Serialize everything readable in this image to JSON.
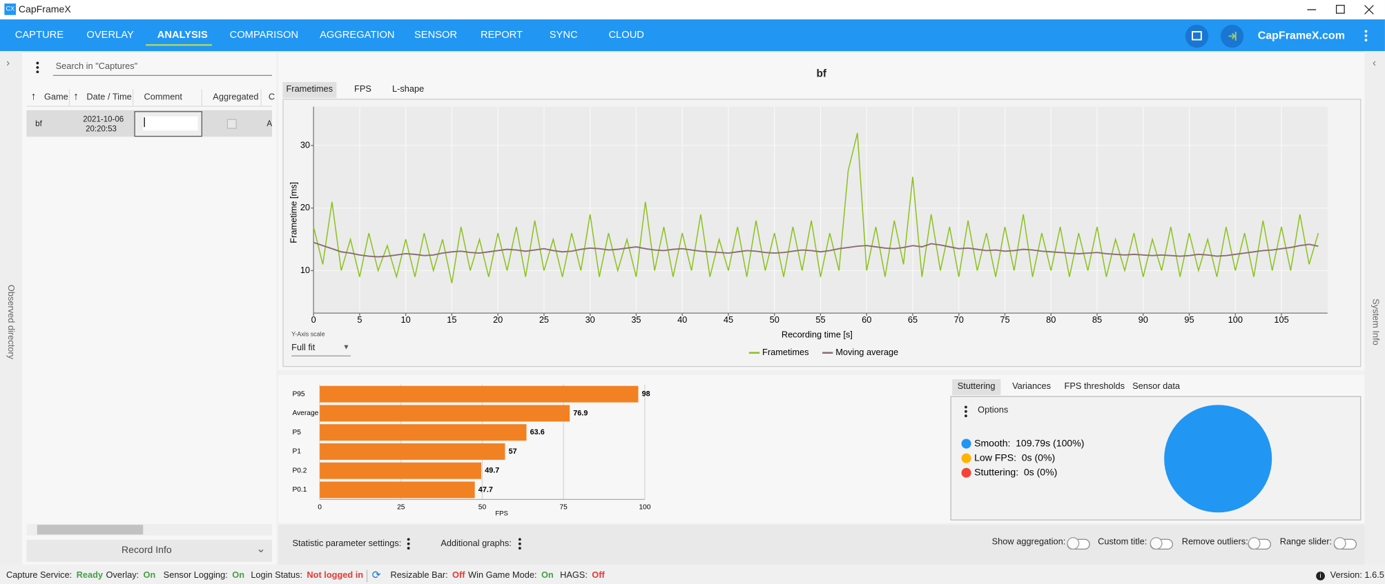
{
  "window": {
    "title": "CapFrameX"
  },
  "nav": {
    "tabs": [
      "CAPTURE",
      "OVERLAY",
      "ANALYSIS",
      "COMPARISON",
      "AGGREGATION",
      "SENSOR",
      "REPORT",
      "SYNC",
      "CLOUD"
    ],
    "site": "CapFrameX.com"
  },
  "sidebars": {
    "left": "Observed directory",
    "right": "System Info"
  },
  "captures": {
    "search_placeholder": "Search in \"Captures\"",
    "columns": [
      "Game",
      "Date / Time",
      "Comment",
      "Aggregated",
      "C"
    ],
    "rows": [
      [
        "bf",
        "2021-10-06",
        "20:20:53",
        "A"
      ]
    ],
    "record_info": "Record Info"
  },
  "analysis": {
    "title": "bf",
    "tabs": [
      "Frametimes",
      "FPS",
      "L-shape"
    ],
    "y_axis_scale_label": "Y-Axis scale",
    "y_axis_scale": "Full fit"
  },
  "frametime_chart": {
    "type": "line",
    "xlabel": "Recording time [s]",
    "ylabel": "Frametime [ms]",
    "x": [
      0,
      1,
      2,
      3,
      4,
      5,
      6,
      7,
      8,
      9,
      10,
      11,
      12,
      13,
      14,
      15,
      16,
      17,
      18,
      19,
      20,
      21,
      22,
      23,
      24,
      25,
      26,
      27,
      28,
      29,
      30,
      31,
      32,
      33,
      34,
      35,
      36,
      37,
      38,
      39,
      40,
      41,
      42,
      43,
      44,
      45,
      46,
      47,
      48,
      49,
      50,
      51,
      52,
      53,
      54,
      55,
      56,
      57,
      58,
      59,
      60,
      61,
      62,
      63,
      64,
      65,
      66,
      67,
      68,
      69,
      70,
      71,
      72,
      73,
      74,
      75,
      76,
      77,
      78,
      79,
      80,
      81,
      82,
      83,
      84,
      85,
      86,
      87,
      88,
      89,
      90,
      91,
      92,
      93,
      94,
      95,
      96,
      97,
      98,
      99,
      100,
      101,
      102,
      103,
      104,
      105,
      106,
      107,
      108,
      109
    ],
    "series": [
      {
        "name": "Frametimes",
        "color": "#8dc21f",
        "values": [
          17,
          11,
          21,
          10,
          15,
          9,
          16,
          10,
          14,
          9,
          15,
          9,
          16,
          10,
          15,
          8,
          17,
          10,
          15,
          9,
          16,
          10,
          17,
          9,
          18,
          10,
          15,
          9,
          16,
          10,
          19,
          9,
          16,
          10,
          15,
          9,
          21,
          10,
          17,
          9,
          16,
          10,
          19,
          9,
          15,
          10,
          17,
          9,
          18,
          10,
          16,
          9,
          17,
          10,
          18,
          9,
          16,
          10,
          26,
          32,
          10,
          17,
          9,
          18,
          11,
          25,
          9,
          19,
          10,
          17,
          9,
          18,
          10,
          16,
          9,
          17,
          10,
          19,
          9,
          16,
          10,
          17,
          9,
          16,
          10,
          17,
          9,
          15,
          10,
          16,
          9,
          15,
          10,
          17,
          9,
          16,
          10,
          15,
          9,
          17,
          10,
          16,
          9,
          18,
          10,
          17,
          10,
          19,
          11,
          16
        ]
      },
      {
        "name": "Moving average",
        "color": "#8a6d73",
        "values": [
          14.5,
          14,
          13.5,
          13,
          12.8,
          12.5,
          12.3,
          12.2,
          12.3,
          12.5,
          12.7,
          12.6,
          12.4,
          12.5,
          12.8,
          13,
          13.1,
          12.9,
          12.8,
          13,
          13.2,
          13.4,
          13.3,
          13.1,
          13.3,
          13.5,
          13.2,
          13,
          13.1,
          13.4,
          13.6,
          13.5,
          13.3,
          13.4,
          13.6,
          13.8,
          13.5,
          13.3,
          13.2,
          13.4,
          13.5,
          13.3,
          13.1,
          13,
          12.9,
          12.8,
          13,
          13.2,
          13.1,
          12.9,
          12.8,
          12.9,
          13.1,
          13.3,
          13.2,
          13,
          13.2,
          13.5,
          13.7,
          13.9,
          14,
          13.8,
          13.6,
          13.5,
          13.7,
          14,
          13.8,
          14.3,
          14.1,
          13.8,
          13.5,
          13.6,
          13.4,
          13.2,
          13.3,
          13.1,
          13.2,
          13.4,
          13.3,
          13.1,
          13,
          12.9,
          12.8,
          12.7,
          12.8,
          12.9,
          12.7,
          12.6,
          12.5,
          12.6,
          12.5,
          12.4,
          12.5,
          12.4,
          12.3,
          12.4,
          12.6,
          12.5,
          12.3,
          12.4,
          12.6,
          12.8,
          13,
          13.2,
          13.3,
          13.5,
          13.7,
          14,
          14.2,
          13.9
        ]
      }
    ],
    "xlim": [
      0,
      110
    ],
    "ylim": [
      3.2,
      36.2
    ],
    "xticks": [
      0,
      5,
      10,
      15,
      20,
      25,
      30,
      35,
      40,
      45,
      50,
      55,
      60,
      65,
      70,
      75,
      80,
      85,
      90,
      95,
      100,
      105
    ],
    "yticks": [
      10,
      20,
      30
    ],
    "grid": true
  },
  "stats_chart": {
    "type": "bar",
    "orientation": "horizontal",
    "xlabel": "FPS",
    "categories": [
      "P95",
      "Average",
      "P5",
      "P1",
      "P0.2",
      "P0.1"
    ],
    "values": [
      98,
      76.9,
      63.6,
      57,
      49.7,
      47.7
    ],
    "color": "#f28123",
    "xlim": [
      0,
      100
    ],
    "xticks": [
      0,
      25,
      50,
      75,
      100
    ],
    "grid": true
  },
  "stutter": {
    "tabs": [
      "Stuttering",
      "Variances",
      "FPS thresholds",
      "Sensor data"
    ],
    "options": "Options",
    "chart": {
      "type": "pie",
      "categories": [
        "Smooth:",
        "Low FPS:",
        "Stuttering:"
      ],
      "values": [
        109.79,
        0,
        0
      ],
      "value_labels": [
        "109.79s (100%)",
        "0s (0%)",
        "0s (0%)"
      ],
      "colors": [
        "#2196f3",
        "#ffb300",
        "#f44336"
      ]
    }
  },
  "footer": {
    "statistic_settings": "Statistic parameter settings:",
    "additional_graphs": "Additional graphs:",
    "toggles": [
      "Show aggregation:",
      "Custom title:",
      "Remove outliers:",
      "Range slider:"
    ]
  },
  "status": {
    "items": [
      {
        "label": "Capture Service:",
        "value": "Ready",
        "color": "#43a047"
      },
      {
        "label": "Overlay:",
        "value": "On",
        "color": "#43a047"
      },
      {
        "label": "Sensor Logging:",
        "value": "On",
        "color": "#43a047"
      },
      {
        "label": "Login Status:",
        "value": "Not logged in",
        "color": "#e53935"
      },
      {
        "label": "Resizable Bar:",
        "value": "Off",
        "color": "#e53935"
      },
      {
        "label": "Win Game Mode:",
        "value": "On",
        "color": "#43a047"
      },
      {
        "label": "HAGS:",
        "value": "Off",
        "color": "#e53935"
      }
    ],
    "version": "Version: 1.6.5"
  }
}
